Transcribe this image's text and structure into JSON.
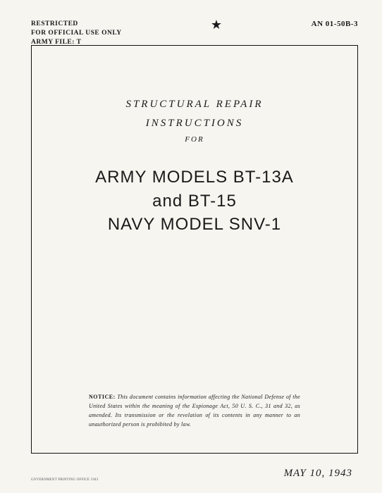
{
  "header": {
    "classification_line1": "RESTRICTED",
    "classification_line2": "FOR OFFICIAL USE ONLY",
    "classification_line3": "ARMY FILE: T",
    "star": "★",
    "doc_number": "AN 01-50B-3"
  },
  "supertitle": {
    "line1": "STRUCTURAL REPAIR",
    "line2": "INSTRUCTIONS",
    "line3_small": "FOR"
  },
  "title": {
    "line1": "ARMY MODELS BT-13A",
    "line2": "and BT-15",
    "line3": "NAVY MODEL SNV-1"
  },
  "notice": {
    "label": "NOTICE:",
    "text": "This document contains information affecting the National Defense of the United States within the meaning of the Espionage Act, 50 U. S. C., 31 and 32, as amended. Its transmission or the revelation of its contents in any manner to an unauthorized person is prohibited by law."
  },
  "pubdate": "MAY 10, 1943",
  "tinyprint": "GOVERNMENT PRINTING OFFICE   1943"
}
